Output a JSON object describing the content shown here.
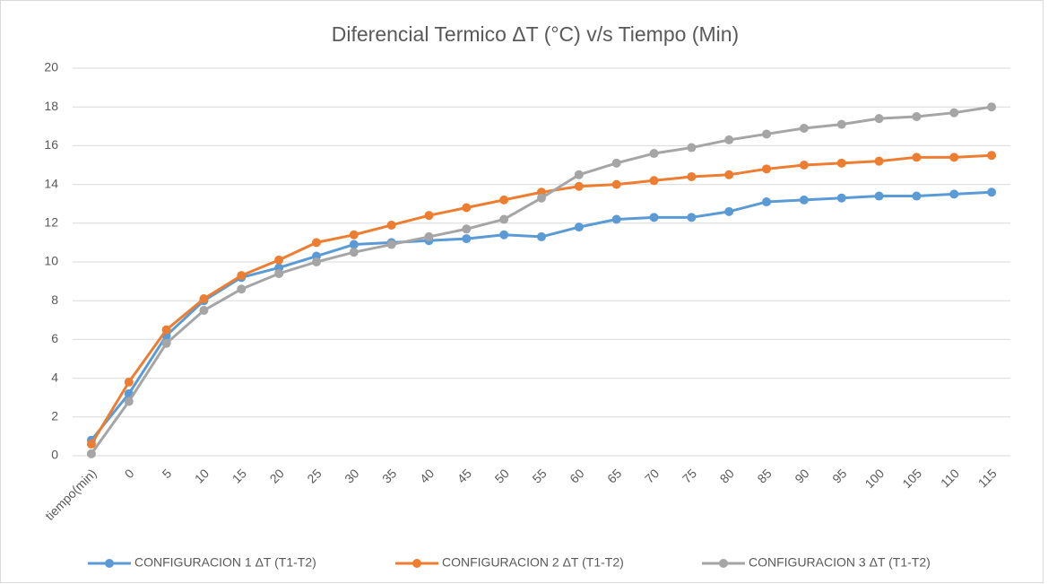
{
  "chart_data": {
    "type": "line",
    "title": "Diferencial Termico  ΔT (°C) v/s Tiempo (Min)",
    "categories": [
      "tiempo(min)",
      "0",
      "5",
      "10",
      "15",
      "20",
      "25",
      "30",
      "35",
      "40",
      "45",
      "50",
      "55",
      "60",
      "65",
      "70",
      "75",
      "80",
      "85",
      "90",
      "95",
      "100",
      "105",
      "110",
      "115"
    ],
    "series": [
      {
        "name": "CONFIGURACION 1  ΔT (T1-T2)",
        "color": "#5b9bd5",
        "values": [
          0.8,
          3.2,
          6.2,
          8.0,
          9.2,
          9.7,
          10.3,
          10.9,
          11.0,
          11.1,
          11.2,
          11.4,
          11.3,
          11.8,
          12.2,
          12.3,
          12.3,
          12.6,
          13.1,
          13.2,
          13.3,
          13.4,
          13.4,
          13.5,
          13.6
        ]
      },
      {
        "name": "CONFIGURACION 2  ΔT (T1-T2)",
        "color": "#ed7d31",
        "values": [
          0.6,
          3.8,
          6.5,
          8.1,
          9.3,
          10.1,
          11.0,
          11.4,
          11.9,
          12.4,
          12.8,
          13.2,
          13.6,
          13.9,
          14.0,
          14.2,
          14.4,
          14.5,
          14.8,
          15.0,
          15.1,
          15.2,
          15.4,
          15.4,
          15.5
        ]
      },
      {
        "name": "CONFIGURACION 3  ΔT (T1-T2)",
        "color": "#a5a5a5",
        "values": [
          0.1,
          2.8,
          5.8,
          7.5,
          8.6,
          9.4,
          10.0,
          10.5,
          10.9,
          11.3,
          11.7,
          12.2,
          13.3,
          14.5,
          15.1,
          15.6,
          15.9,
          16.3,
          16.6,
          16.9,
          17.1,
          17.4,
          17.5,
          17.7,
          18.0
        ]
      }
    ],
    "ylim": [
      0,
      20
    ],
    "yticks": [
      0,
      2,
      4,
      6,
      8,
      10,
      12,
      14,
      16,
      18,
      20
    ],
    "grid": true,
    "legend": "bottom"
  }
}
